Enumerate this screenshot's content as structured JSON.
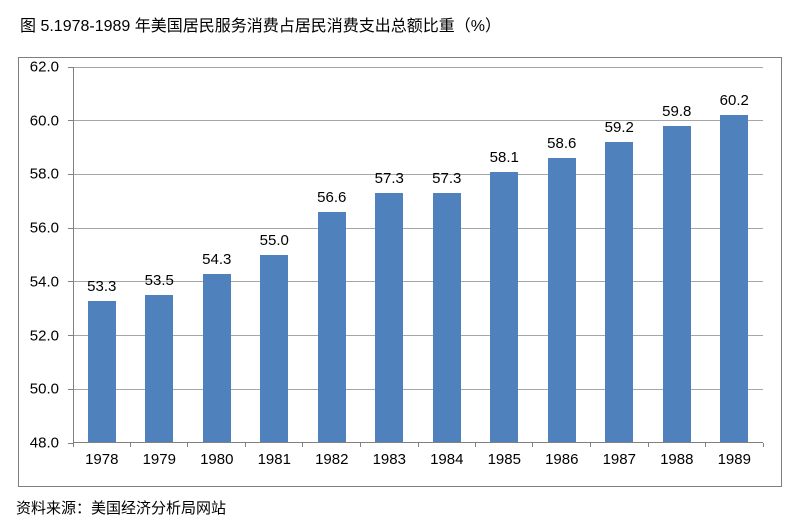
{
  "page": {
    "title": "图 5.1978-1989 年美国居民服务消费占居民消费支出总额比重（%）",
    "source": "资料来源：美国经济分析局网站"
  },
  "chart_data": {
    "type": "bar",
    "title": "图 5.1978-1989 年美国居民服务消费占居民消费支出总额比重（%）",
    "categories": [
      "1978",
      "1979",
      "1980",
      "1981",
      "1982",
      "1983",
      "1984",
      "1985",
      "1986",
      "1987",
      "1988",
      "1989"
    ],
    "values": [
      53.3,
      53.5,
      54.3,
      55.0,
      56.6,
      57.3,
      57.3,
      58.1,
      58.6,
      59.2,
      59.8,
      60.2
    ],
    "value_labels": [
      "53.3",
      "53.5",
      "54.3",
      "55.0",
      "56.6",
      "57.3",
      "57.3",
      "58.1",
      "58.6",
      "59.2",
      "59.8",
      "60.2"
    ],
    "xlabel": "",
    "ylabel": "",
    "ylim": [
      48.0,
      62.0
    ],
    "ytick_step": 2.0,
    "ytick_labels": [
      "62.0",
      "60.0",
      "58.0",
      "56.0",
      "54.0",
      "52.0",
      "50.0",
      "48.0"
    ],
    "grid": true,
    "legend": false,
    "source_note": "资料来源：美国经济分析局网站",
    "colors": {
      "bar": "#4f81bd",
      "gridline": "#a6a6a6",
      "axis": "#808080",
      "frame_border": "#7f7f7f",
      "text": "#000000",
      "background": "#ffffff"
    }
  }
}
